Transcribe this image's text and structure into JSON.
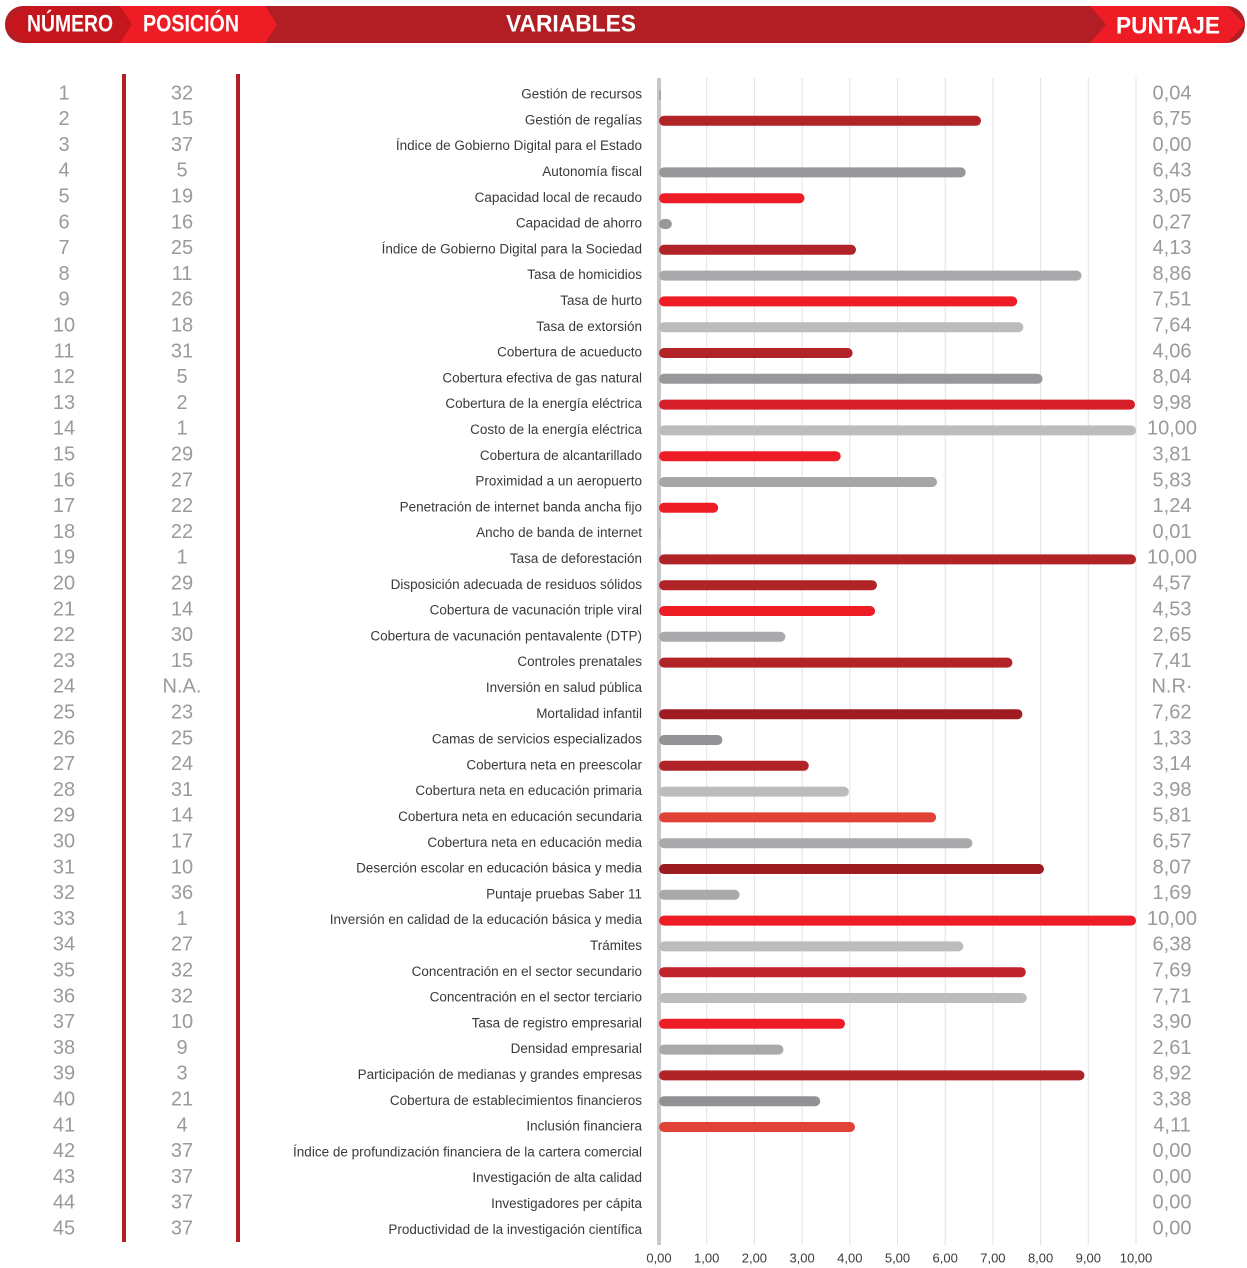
{
  "header": {
    "number": "NÚMERO",
    "position": "POSICIÓN",
    "variables": "VARIABLES",
    "score": "PUNTAJE"
  },
  "chart_data": {
    "type": "bar",
    "orientation": "horizontal",
    "grid": true,
    "numbers": [
      1,
      2,
      3,
      4,
      5,
      6,
      7,
      8,
      9,
      10,
      11,
      12,
      13,
      14,
      15,
      16,
      17,
      18,
      19,
      20,
      21,
      22,
      23,
      24,
      25,
      26,
      27,
      28,
      29,
      30,
      31,
      32,
      33,
      34,
      35,
      36,
      37,
      38,
      39,
      40,
      41,
      42,
      43,
      44,
      45
    ],
    "positions": [
      32,
      15,
      37,
      5,
      19,
      16,
      25,
      11,
      26,
      18,
      31,
      5,
      2,
      1,
      29,
      27,
      22,
      22,
      1,
      29,
      14,
      30,
      15,
      "N.A.",
      23,
      25,
      24,
      31,
      14,
      17,
      10,
      36,
      1,
      27,
      32,
      32,
      10,
      9,
      3,
      21,
      4,
      37,
      37,
      37,
      37
    ],
    "categories": [
      "Gestión de recursos",
      "Gestión de regalías",
      "Índice de Gobierno Digital para el Estado",
      "Autonomía fiscal",
      "Capacidad local de recaudo",
      "Capacidad de ahorro",
      "Índice de Gobierno Digital para la Sociedad",
      "Tasa de homicidios",
      "Tasa de hurto",
      "Tasa de extorsión",
      "Cobertura de acueducto",
      "Cobertura efectiva de gas natural",
      "Cobertura de la energía eléctrica",
      "Costo de la energía eléctrica",
      "Cobertura de alcantarillado",
      "Proximidad a un aeropuerto",
      "Penetración de internet banda ancha fijo",
      "Ancho de banda de internet",
      "Tasa de deforestación",
      "Disposición adecuada de residuos sólidos",
      "Cobertura de vacunación triple viral",
      "Cobertura de vacunación pentavalente (DTP)",
      "Controles prenatales",
      "Inversión en salud pública",
      "Mortalidad infantil",
      "Camas de servicios especializados",
      "Cobertura neta en preescolar",
      "Cobertura neta en educación primaria",
      "Cobertura neta en educación secundaria",
      "Cobertura neta en educación media",
      "Deserción escolar en educación básica y media",
      "Puntaje pruebas Saber 11",
      "Inversión en calidad de la educación básica y media",
      "Trámites",
      "Concentración en el sector secundario",
      "Concentración en el sector terciario",
      "Tasa de registro empresarial",
      "Densidad empresarial",
      "Participación de medianas y grandes empresas",
      "Cobertura de establecimientos financieros",
      "Inclusión financiera",
      "Índice de profundización financiera de la cartera comercial",
      "Investigación de alta calidad",
      "Investigadores per cápita",
      "Productividad de la investigación científica"
    ],
    "values": [
      0.04,
      6.75,
      0,
      6.43,
      3.05,
      0.27,
      4.13,
      8.86,
      7.51,
      7.64,
      4.06,
      8.04,
      9.98,
      10,
      3.81,
      5.83,
      1.24,
      0.01,
      10,
      4.57,
      4.53,
      2.65,
      7.41,
      null,
      7.62,
      1.33,
      3.14,
      3.98,
      5.81,
      6.57,
      8.07,
      1.69,
      10,
      6.38,
      7.69,
      7.71,
      3.9,
      2.61,
      8.92,
      3.38,
      4.11,
      0,
      0,
      0,
      0
    ],
    "value_labels": [
      "0,04",
      "6,75",
      "0,00",
      "6,43",
      "3,05",
      "0,27",
      "4,13",
      "8,86",
      "7,51",
      "7,64",
      "4,06",
      "8,04",
      "9,98",
      "10,00",
      "3,81",
      "5,83",
      "1,24",
      "0,01",
      "10,00",
      "4,57",
      "4,53",
      "2,65",
      "7,41",
      "N.R·",
      "7,62",
      "1,33",
      "3,14",
      "3,98",
      "5,81",
      "6,57",
      "8,07",
      "1,69",
      "10,00",
      "6,38",
      "7,69",
      "7,71",
      "3,90",
      "2,61",
      "8,92",
      "3,38",
      "4,11",
      "0,00",
      "0,00",
      "0,00",
      "0,00"
    ],
    "colors": [
      "#a6a6a8",
      "#b02428",
      "#bcbcbe",
      "#98989b",
      "#ee1c25",
      "#98989b",
      "#b02428",
      "#a9a9ab",
      "#ee1c25",
      "#bcbcbe",
      "#b02428",
      "#98989b",
      "#d71f2a",
      "#bcbcbe",
      "#ee1c25",
      "#a6a6a8",
      "#ee1c25",
      "#98989b",
      "#b02428",
      "#b02428",
      "#ee1c25",
      "#a9a9ab",
      "#b02428",
      "#bcbcbe",
      "#a01c22",
      "#929295",
      "#b02428",
      "#bcbcbe",
      "#e04335",
      "#a9a9ab",
      "#9b1b21",
      "#a9a9ab",
      "#ee1c25",
      "#bcbcbe",
      "#c0232b",
      "#bcbcbe",
      "#ee1c25",
      "#a9a9ab",
      "#b02428",
      "#929295",
      "#e04335",
      "#bcbcbe",
      "#bcbcbe",
      "#bcbcbe",
      "#bcbcbe"
    ],
    "xlim": [
      0,
      10
    ],
    "xticks": [
      {
        "value": 0,
        "label": "0,00"
      },
      {
        "value": 1,
        "label": "1,00"
      },
      {
        "value": 2,
        "label": "2,00"
      },
      {
        "value": 3,
        "label": "3,00"
      },
      {
        "value": 4,
        "label": "4,00"
      },
      {
        "value": 5,
        "label": "5,00"
      },
      {
        "value": 6,
        "label": "6,00"
      },
      {
        "value": 7,
        "label": "7,00"
      },
      {
        "value": 8,
        "label": "8,00"
      },
      {
        "value": 9,
        "label": "9,00"
      },
      {
        "value": 10,
        "label": "10,00"
      }
    ]
  }
}
